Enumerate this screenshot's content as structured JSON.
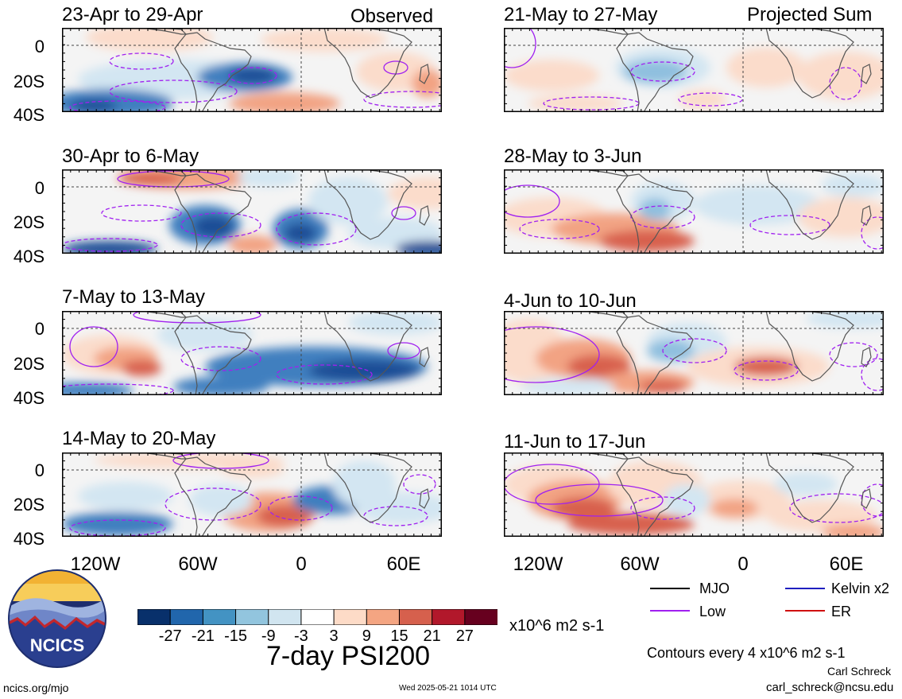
{
  "column_headers": {
    "left": "Observed",
    "right": "Projected Sum"
  },
  "panels": [
    {
      "title": "23-Apr to 29-Apr"
    },
    {
      "title": "30-Apr to 6-May"
    },
    {
      "title": "7-May to 13-May"
    },
    {
      "title": "14-May to 20-May"
    },
    {
      "title": "21-May to 27-May"
    },
    {
      "title": "28-May to 3-Jun"
    },
    {
      "title": "4-Jun to 10-Jun"
    },
    {
      "title": "11-Jun to 17-Jun"
    }
  ],
  "lat_labels": [
    "0",
    "20S",
    "40S"
  ],
  "lon_labels": [
    "120W",
    "60W",
    "0",
    "60E"
  ],
  "colorbar": {
    "colors": [
      "#08306b",
      "#2166ac",
      "#4393c3",
      "#92c5de",
      "#d1e5f0",
      "#ffffff",
      "#fddbc7",
      "#f4a582",
      "#d6604d",
      "#b2182b",
      "#67001f"
    ],
    "labels": [
      "-27",
      "-21",
      "-15",
      "-9",
      "-3",
      "3",
      "9",
      "15",
      "21",
      "27"
    ],
    "units": "x10^6 m2 s-1"
  },
  "main_title": "7-day PSI200",
  "legend": {
    "items": [
      {
        "label": "MJO",
        "color": "#000000"
      },
      {
        "label": "Kelvin x2",
        "color": "#1f1fbf"
      },
      {
        "label": "Low",
        "color": "#a020f0"
      },
      {
        "label": "ER",
        "color": "#d01010"
      }
    ],
    "contour_note": "Contours every 4 x10^6 m2 s-1"
  },
  "credits": {
    "author": "Carl Schreck",
    "email": "carl_schreck@ncsu.edu",
    "url": "ncics.org/mjo",
    "timestamp": "Wed 2025-05-21 1014 UTC",
    "logo_text": "NCICS"
  }
}
